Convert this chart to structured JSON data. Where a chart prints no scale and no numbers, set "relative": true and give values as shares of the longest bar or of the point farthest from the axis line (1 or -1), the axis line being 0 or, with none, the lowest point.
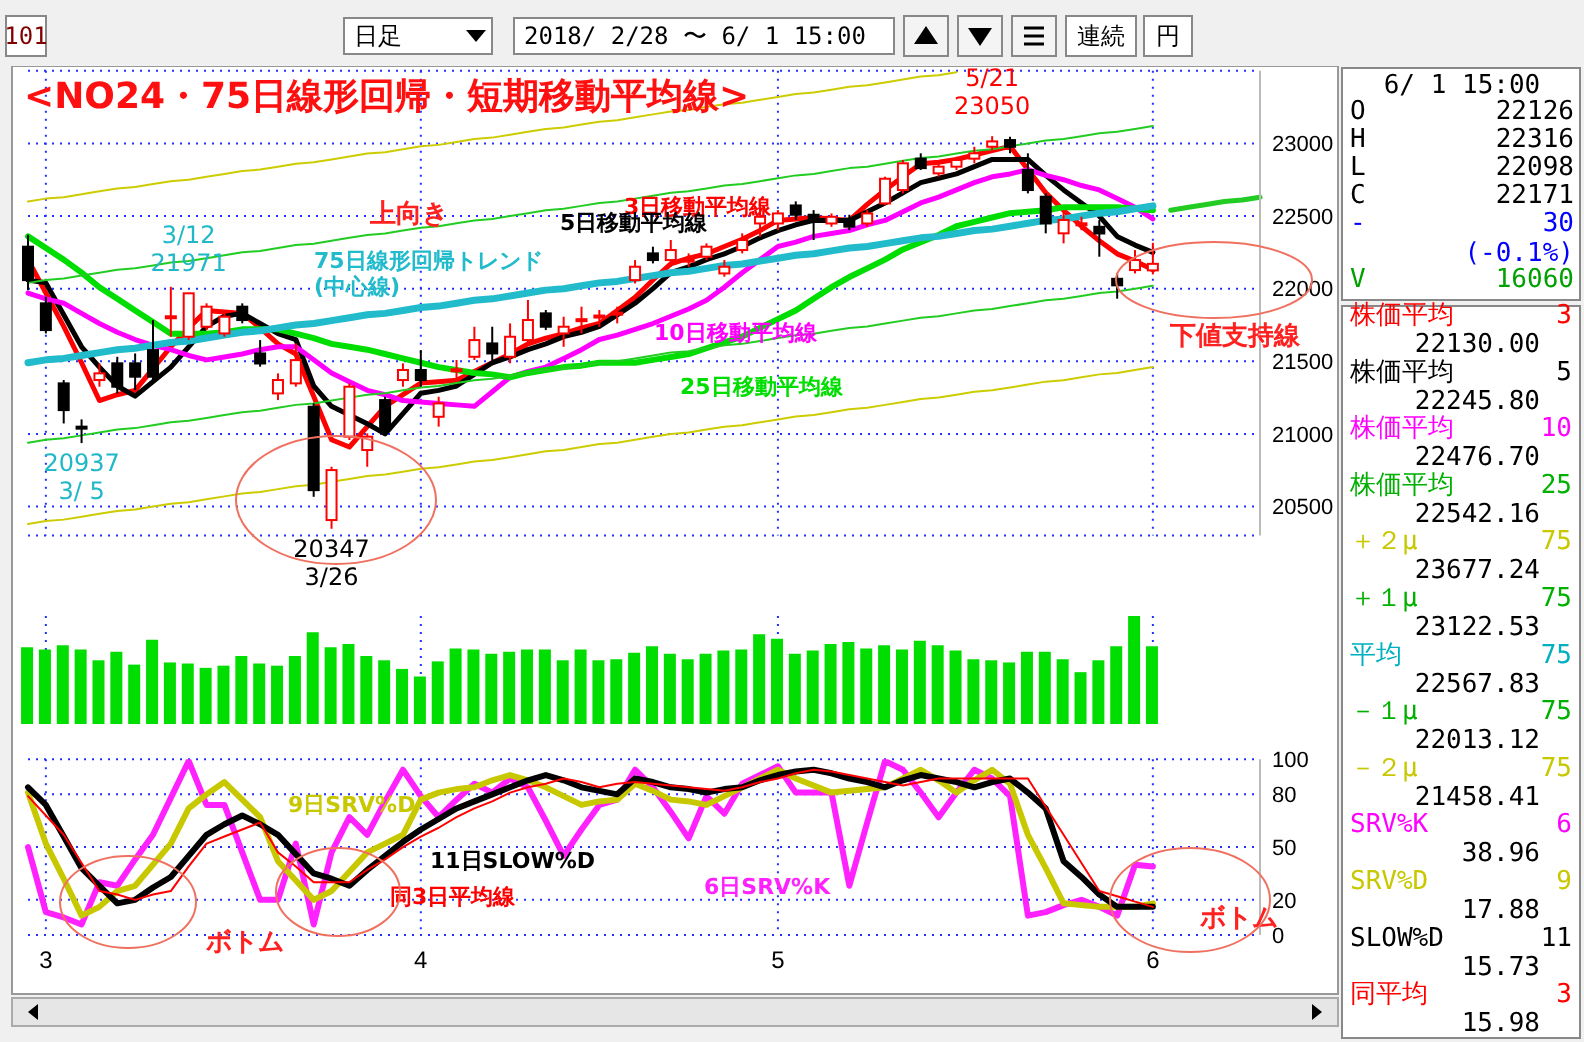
{
  "chart_data": [
    {
      "type": "candlestick",
      "title": "<NO24・75日線形回帰・短期移動平均線>",
      "categories": [
        null,
        "3",
        null,
        null,
        null,
        null,
        null,
        null,
        null,
        null,
        null,
        null,
        null,
        null,
        null,
        null,
        null,
        null,
        null,
        null,
        null,
        null,
        "4",
        null,
        null,
        null,
        null,
        null,
        null,
        null,
        null,
        null,
        null,
        null,
        null,
        null,
        null,
        null,
        null,
        null,
        null,
        null,
        "5",
        null,
        null,
        null,
        null,
        null,
        null,
        null,
        null,
        null,
        null,
        null,
        null,
        null,
        null,
        null,
        null,
        null,
        null,
        null,
        null,
        "6",
        null,
        null,
        null,
        null,
        null,
        null
      ],
      "ohlc": [
        [
          22289,
          22371,
          21990,
          22059
        ],
        [
          21899,
          21944,
          21692,
          21715
        ],
        [
          21348,
          21371,
          21072,
          21164
        ],
        [
          21050,
          21100,
          20937,
          21045
        ],
        [
          21371,
          21486,
          21325,
          21417
        ],
        [
          21486,
          21531,
          21279,
          21325
        ],
        [
          21486,
          21554,
          21302,
          21394
        ],
        [
          21577,
          21784,
          21371,
          21394
        ],
        [
          21800,
          22013,
          21669,
          21810
        ],
        [
          21669,
          21971,
          21646,
          21968
        ],
        [
          21738,
          21899,
          21715,
          21876
        ],
        [
          21692,
          21853,
          21669,
          21807
        ],
        [
          21876,
          21899,
          21761,
          21784
        ],
        [
          21554,
          21646,
          21463,
          21485
        ],
        [
          21279,
          21417,
          21233,
          21371
        ],
        [
          21348,
          21623,
          21325,
          21508
        ],
        [
          21187,
          21210,
          20567,
          20613
        ],
        [
          20407,
          20774,
          20347,
          20751
        ],
        [
          20981,
          21348,
          20958,
          21325
        ],
        [
          20889,
          21004,
          20774,
          20981
        ],
        [
          21233,
          21256,
          21004,
          21026
        ],
        [
          21371,
          21486,
          21325,
          21440
        ],
        [
          21440,
          21577,
          21325,
          21371
        ],
        [
          21118,
          21256,
          21050,
          21210
        ],
        [
          21440,
          21509,
          21371,
          21445
        ],
        [
          21531,
          21738,
          21509,
          21646
        ],
        [
          21623,
          21738,
          21509,
          21554
        ],
        [
          21531,
          21761,
          21486,
          21669
        ],
        [
          21646,
          21922,
          21623,
          21784
        ],
        [
          21830,
          21853,
          21715,
          21738
        ],
        [
          21692,
          21807,
          21600,
          21738
        ],
        [
          21784,
          21876,
          21692,
          21790
        ],
        [
          21810,
          21853,
          21738,
          21815
        ],
        [
          21825,
          21876,
          21761,
          21835
        ],
        [
          22059,
          22197,
          22036,
          22151
        ],
        [
          22243,
          22289,
          22174,
          22197
        ],
        [
          22197,
          22335,
          22151,
          22266
        ],
        [
          22195,
          22243,
          22151,
          22200
        ],
        [
          22220,
          22312,
          22197,
          22289
        ],
        [
          22105,
          22197,
          22082,
          22151
        ],
        [
          22266,
          22381,
          22243,
          22335
        ],
        [
          22449,
          22587,
          22358,
          22495
        ],
        [
          22449,
          22541,
          22403,
          22518
        ],
        [
          22573,
          22601,
          22472,
          22509
        ],
        [
          22509,
          22541,
          22335,
          22472
        ],
        [
          22449,
          22518,
          22426,
          22495
        ],
        [
          22482,
          22509,
          22403,
          22427
        ],
        [
          22449,
          22541,
          22426,
          22518
        ],
        [
          22587,
          22771,
          22573,
          22757
        ],
        [
          22679,
          22886,
          22656,
          22863
        ],
        [
          22895,
          22932,
          22817,
          22830
        ],
        [
          22794,
          22886,
          22771,
          22840
        ],
        [
          22840,
          22908,
          22817,
          22886
        ],
        [
          22895,
          22977,
          22863,
          22932
        ],
        [
          22977,
          23050,
          22954,
          23014
        ],
        [
          23023,
          23046,
          22932,
          22977
        ],
        [
          22817,
          22932,
          22656,
          22679
        ],
        [
          22633,
          22656,
          22381,
          22449
        ],
        [
          22381,
          22541,
          22312,
          22473
        ],
        [
          22445,
          22495,
          22403,
          22450
        ],
        [
          22426,
          22472,
          22220,
          22380
        ],
        [
          22068,
          22105,
          21931,
          22023
        ],
        [
          22128,
          22266,
          22105,
          22197
        ],
        [
          22126,
          22316,
          22098,
          22171
        ],
        null,
        null,
        null,
        null,
        null,
        null
      ],
      "series": [
        {
          "type": "line",
          "name": "3日移動平均線",
          "color": "#ff0000",
          "values": [
            22200,
            21970,
            21740,
            21490,
            21230,
            21270,
            21300,
            21450,
            21600,
            21730,
            21850,
            21840,
            21830,
            21730,
            21620,
            21550,
            21260,
            20960,
            20910,
            21050,
            21190,
            21270,
            21350,
            21360,
            21370,
            21430,
            21490,
            21550,
            21620,
            21660,
            21690,
            21730,
            21760,
            21850,
            21940,
            22060,
            22170,
            22210,
            22240,
            22290,
            22340,
            22400,
            22470,
            22480,
            22490,
            22480,
            22470,
            22580,
            22680,
            22770,
            22860,
            22870,
            22890,
            22920,
            22950,
            22980,
            22820,
            22660,
            22540,
            22430,
            22330,
            22240,
            22190,
            22130,
            null,
            null,
            null,
            null,
            null,
            null
          ]
        },
        {
          "type": "line",
          "name": "5日移動平均線",
          "color": "#000000",
          "values": [
            22060,
            22040,
            21820,
            21600,
            21460,
            21330,
            21260,
            21360,
            21460,
            21600,
            21740,
            21810,
            21830,
            21760,
            21690,
            21650,
            21330,
            21190,
            21130,
            21070,
            21000,
            21140,
            21280,
            21300,
            21330,
            21410,
            21490,
            21530,
            21580,
            21620,
            21670,
            21700,
            21740,
            21820,
            21900,
            22000,
            22110,
            22150,
            22200,
            22240,
            22290,
            22350,
            22400,
            22440,
            22470,
            22470,
            22470,
            22530,
            22590,
            22660,
            22730,
            22760,
            22790,
            22840,
            22890,
            22890,
            22890,
            22780,
            22680,
            22590,
            22500,
            22360,
            22300,
            22250,
            null,
            null,
            null,
            null,
            null,
            null
          ]
        },
        {
          "type": "line",
          "name": "10日移動平均線",
          "color": "#ff00ff",
          "values": [
            21970,
            21930,
            21900,
            21830,
            21760,
            21700,
            21650,
            21610,
            21580,
            21540,
            21510,
            21530,
            21550,
            21580,
            21600,
            21600,
            21510,
            21420,
            21360,
            21300,
            21270,
            21230,
            21220,
            21210,
            21200,
            21190,
            21290,
            21390,
            21430,
            21460,
            21520,
            21580,
            21650,
            21680,
            21720,
            21760,
            21810,
            21860,
            21920,
            22010,
            22110,
            22200,
            22290,
            22320,
            22360,
            22380,
            22400,
            22440,
            22470,
            22530,
            22590,
            22630,
            22680,
            22730,
            22770,
            22790,
            22820,
            22780,
            22750,
            22710,
            22680,
            22620,
            22560,
            22480,
            null,
            null,
            null,
            null,
            null,
            null
          ]
        },
        {
          "type": "line",
          "name": "25日移動平均線",
          "color": "#00dd00",
          "values": [
            22360,
            22280,
            22200,
            22110,
            22010,
            21930,
            21850,
            21770,
            21690,
            21690,
            21690,
            21700,
            21720,
            21720,
            21720,
            21690,
            21660,
            21620,
            21600,
            21580,
            21550,
            21520,
            21490,
            21460,
            21440,
            21420,
            21410,
            21390,
            21420,
            21440,
            21460,
            21470,
            21490,
            21490,
            21490,
            21510,
            21530,
            21550,
            21590,
            21630,
            21670,
            21730,
            21790,
            21850,
            21930,
            22010,
            22080,
            22140,
            22200,
            22270,
            22320,
            22370,
            22430,
            22460,
            22490,
            22520,
            22530,
            22540,
            22560,
            22560,
            22560,
            22560,
            22550,
            22540,
            null,
            null,
            null,
            null,
            null,
            null
          ]
        },
        {
          "type": "line",
          "name": "75日線形回帰トレンド\n(中心線)",
          "color": "#22bbcc",
          "values": [
            21490,
            21510,
            21520,
            21540,
            21560,
            21580,
            21590,
            21610,
            21630,
            21640,
            21660,
            21680,
            21700,
            21710,
            21730,
            21750,
            21760,
            21780,
            21800,
            21820,
            21830,
            21850,
            21870,
            21880,
            21900,
            21920,
            21930,
            21950,
            21970,
            21990,
            22000,
            22020,
            22040,
            22050,
            22070,
            22090,
            22110,
            22120,
            22140,
            22160,
            22170,
            22190,
            22210,
            22230,
            22240,
            22260,
            22280,
            22290,
            22310,
            22330,
            22350,
            22360,
            22380,
            22400,
            22410,
            22430,
            22450,
            22470,
            22480,
            22500,
            22520,
            22530,
            22550,
            22570,
            null,
            null,
            null,
            null,
            null,
            null
          ]
        },
        {
          "type": "line",
          "color": "#22cc22",
          "values": [
            22040,
            22060,
            22070,
            22090,
            22110,
            22130,
            22140,
            22160,
            22180,
            22190,
            22210,
            22230,
            22250,
            22260,
            22280,
            22300,
            22310,
            22330,
            22350,
            22370,
            22380,
            22400,
            22420,
            22430,
            22450,
            22470,
            22480,
            22500,
            22520,
            22540,
            22550,
            22570,
            22590,
            22600,
            22620,
            22640,
            22660,
            22670,
            22690,
            22710,
            22720,
            22740,
            22760,
            22780,
            22790,
            22810,
            22830,
            22840,
            22860,
            22880,
            22900,
            22910,
            22930,
            22950,
            22960,
            22980,
            23000,
            23020,
            23030,
            23050,
            23070,
            23080,
            23100,
            23120,
            null,
            null,
            null,
            null,
            null,
            null
          ]
        },
        {
          "type": "line",
          "color": "#22cc22",
          "values": [
            20940,
            20960,
            20970,
            20990,
            21010,
            21030,
            21040,
            21060,
            21080,
            21090,
            21110,
            21130,
            21150,
            21160,
            21180,
            21200,
            21210,
            21230,
            21250,
            21270,
            21280,
            21300,
            21320,
            21330,
            21350,
            21370,
            21380,
            21400,
            21420,
            21440,
            21450,
            21470,
            21490,
            21500,
            21520,
            21540,
            21560,
            21570,
            21590,
            21610,
            21620,
            21640,
            21660,
            21680,
            21690,
            21710,
            21730,
            21740,
            21760,
            21780,
            21800,
            21810,
            21830,
            21850,
            21860,
            21880,
            21900,
            21920,
            21930,
            21950,
            21970,
            21980,
            22000,
            22020,
            null,
            null,
            null,
            null,
            null,
            null
          ]
        },
        {
          "type": "line",
          "color": "#cccc00",
          "values": [
            22600,
            22620,
            22630,
            22650,
            22670,
            22690,
            22700,
            22720,
            22740,
            22750,
            22770,
            22790,
            22810,
            22820,
            22840,
            22860,
            22870,
            22890,
            22910,
            22930,
            22940,
            22960,
            22980,
            22990,
            23010,
            23030,
            23040,
            23060,
            23080,
            23100,
            23110,
            23130,
            23150,
            23160,
            23180,
            23200,
            23220,
            23230,
            23250,
            23270,
            23280,
            23300,
            23320,
            23340,
            23350,
            23370,
            23390,
            23400,
            23420,
            23440,
            23460,
            23470,
            23490,
            null,
            null,
            null,
            null,
            null,
            null,
            null,
            null,
            null,
            null,
            null,
            null,
            null,
            null,
            null,
            null,
            null
          ]
        },
        {
          "type": "line",
          "color": "#cccc00",
          "values": [
            20380,
            20400,
            20410,
            20430,
            20450,
            20470,
            20480,
            20500,
            20520,
            20530,
            20550,
            20570,
            20590,
            20600,
            20620,
            20640,
            20650,
            20670,
            20690,
            20710,
            20720,
            20740,
            20760,
            20770,
            20790,
            20810,
            20820,
            20840,
            20860,
            20880,
            20890,
            20910,
            20930,
            20940,
            20960,
            20980,
            21000,
            21010,
            21030,
            21050,
            21060,
            21080,
            21100,
            21120,
            21130,
            21150,
            21170,
            21180,
            21200,
            21220,
            21240,
            21250,
            21270,
            21290,
            21300,
            21320,
            21340,
            21360,
            21370,
            21390,
            21410,
            21420,
            21440,
            21460,
            null,
            null,
            null,
            null,
            null,
            null
          ]
        },
        {
          "type": "line",
          "color": "#22cc22",
          "values": [
            null,
            null,
            null,
            null,
            null,
            null,
            null,
            null,
            null,
            null,
            null,
            null,
            null,
            null,
            null,
            null,
            null,
            null,
            null,
            null,
            null,
            null,
            null,
            null,
            null,
            null,
            null,
            null,
            null,
            null,
            null,
            null,
            null,
            null,
            null,
            null,
            null,
            null,
            null,
            null,
            null,
            null,
            null,
            null,
            null,
            null,
            null,
            null,
            null,
            null,
            null,
            null,
            null,
            null,
            null,
            null,
            null,
            null,
            null,
            null,
            null,
            null,
            null,
            null,
            22540,
            22560,
            22580,
            22600,
            22610,
            22630
          ]
        }
      ],
      "ylim": [
        20300,
        23500
      ],
      "yticks": [
        20500,
        21000,
        21500,
        22000,
        22500,
        23000
      ],
      "grid": true,
      "tick_labels": "y",
      "annotations": [
        "上向き",
        {
          "text": "3/12\n21971",
          "y": 21971
        },
        {
          "text": "20937\n3/ 5",
          "y": 20937
        },
        {
          "text": "20347\n3/26",
          "y": 20347
        },
        {
          "text": "5/21\n23050",
          "y": 23050
        },
        "下値支持線",
        "6/ 1 15:00",
        "O",
        "22126",
        "H",
        "22316",
        "L",
        "22098",
        "C",
        "22171",
        "-",
        "30",
        "(-0.1%)",
        "V",
        "16060",
        "株価平均",
        "3",
        "22130.00",
        "株価平均",
        "5",
        "22245.80",
        "株価平均",
        "10",
        "22476.70",
        "株価平均",
        "25",
        "22542.16",
        "＋２μ",
        "75",
        "23677.24",
        "＋１μ",
        "75",
        "23122.53",
        "平均",
        "75",
        "22567.83",
        "－１μ",
        "75",
        "22013.12",
        "－２μ",
        "75",
        "21458.41",
        "SRV%K",
        "6",
        "38.96",
        "SRV%D",
        "9",
        "17.88",
        "SLOW%D",
        "11",
        "15.73",
        "同平均",
        "3",
        "15.98"
      ]
    },
    {
      "type": "bar",
      "relative": true,
      "color": "#00dd00",
      "categories": [
        null,
        "3",
        null,
        null,
        null,
        null,
        null,
        null,
        null,
        null,
        null,
        null,
        null,
        null,
        null,
        null,
        null,
        null,
        null,
        null,
        null,
        null,
        "4",
        null,
        null,
        null,
        null,
        null,
        null,
        null,
        null,
        null,
        null,
        null,
        null,
        null,
        null,
        null,
        null,
        null,
        null,
        null,
        "5",
        null,
        null,
        null,
        null,
        null,
        null,
        null,
        null,
        null,
        null,
        null,
        null,
        null,
        null,
        null,
        null,
        null,
        null,
        null,
        null,
        "6",
        null,
        null,
        null,
        null,
        null,
        null
      ],
      "values": [
        0.71,
        0.69,
        0.73,
        0.69,
        0.59,
        0.67,
        0.55,
        0.78,
        0.57,
        0.56,
        0.52,
        0.54,
        0.63,
        0.56,
        0.54,
        0.63,
        0.85,
        0.71,
        0.74,
        0.63,
        0.59,
        0.51,
        0.44,
        0.58,
        0.7,
        0.69,
        0.65,
        0.67,
        0.69,
        0.69,
        0.59,
        0.69,
        0.59,
        0.6,
        0.66,
        0.72,
        0.65,
        0.6,
        0.65,
        0.68,
        0.69,
        0.83,
        0.79,
        0.65,
        0.68,
        0.74,
        0.76,
        0.7,
        0.73,
        0.69,
        0.77,
        0.73,
        0.68,
        0.6,
        0.59,
        0.57,
        0.67,
        0.67,
        0.6,
        0.48,
        0.59,
        0.72,
        1,
        0.72,
        null,
        null,
        null,
        null,
        null,
        null
      ],
      "grid": "x",
      "tick_labels": false
    },
    {
      "type": "line",
      "categories": [
        null,
        "3",
        null,
        null,
        null,
        null,
        null,
        null,
        null,
        null,
        null,
        null,
        null,
        null,
        null,
        null,
        null,
        null,
        null,
        null,
        null,
        null,
        "4",
        null,
        null,
        null,
        null,
        null,
        null,
        null,
        null,
        null,
        null,
        null,
        null,
        null,
        null,
        null,
        null,
        null,
        null,
        null,
        "5",
        null,
        null,
        null,
        null,
        null,
        null,
        null,
        null,
        null,
        null,
        null,
        null,
        null,
        null,
        null,
        null,
        null,
        null,
        null,
        null,
        "6",
        null,
        null,
        null,
        null,
        null,
        null
      ],
      "series": [
        {
          "name": "6日SRV%K",
          "color": "#ff22ff",
          "values": [
            50,
            13,
            10,
            6,
            30,
            28,
            43,
            57,
            78,
            99,
            74,
            74,
            47,
            20,
            20,
            52,
            6,
            47,
            67,
            57,
            76,
            94,
            79,
            67,
            77,
            86,
            81,
            89,
            84,
            65,
            45,
            60,
            74,
            77,
            94,
            84,
            70,
            55,
            79,
            69,
            86,
            91,
            96,
            81,
            81,
            81,
            28,
            64,
            99,
            94,
            81,
            67,
            81,
            94,
            89,
            79,
            11,
            13,
            17,
            20,
            16,
            11,
            40,
            39,
            null,
            null,
            null,
            null,
            null,
            null
          ]
        },
        {
          "name": "9日SRV%D",
          "color": "#c8c800",
          "values": [
            81,
            52,
            32,
            11,
            16,
            25,
            28,
            40,
            52,
            72,
            80,
            87,
            77,
            67,
            42,
            31,
            20,
            25,
            36,
            47,
            52,
            57,
            77,
            81,
            83,
            84,
            88,
            91,
            88,
            84,
            79,
            74,
            76,
            77,
            86,
            82,
            77,
            76,
            74,
            79,
            84,
            89,
            94,
            89,
            85,
            81,
            82,
            83,
            84,
            89,
            94,
            88,
            81,
            88,
            94,
            86,
            57,
            38,
            18,
            17,
            16,
            16,
            16,
            18,
            null,
            null,
            null,
            null,
            null,
            null
          ]
        },
        {
          "name": "11日SLOW%D",
          "color": "#000000",
          "values": [
            84,
            74,
            56,
            38,
            28,
            18,
            20,
            27,
            33,
            45,
            57,
            63,
            68,
            63,
            57,
            46,
            35,
            32,
            28,
            37,
            45,
            53,
            60,
            66,
            72,
            76,
            80,
            84,
            88,
            91,
            88,
            84,
            82,
            80,
            89,
            87,
            84,
            83,
            81,
            83,
            84,
            88,
            91,
            93,
            94,
            92,
            89,
            87,
            84,
            88,
            91,
            89,
            87,
            84,
            87,
            89,
            81,
            72,
            42,
            33,
            23,
            16,
            16,
            16,
            null,
            null,
            null,
            null,
            null,
            null
          ]
        },
        {
          "name": "同3日平均線",
          "color": "#ff0000",
          "values": [
            79,
            68,
            57,
            41,
            25,
            23,
            20,
            23,
            25,
            39,
            52,
            56,
            60,
            64,
            47,
            39,
            30,
            30,
            30,
            37,
            43,
            50,
            56,
            61,
            67,
            72,
            76,
            81,
            84,
            86,
            89,
            87,
            84,
            86,
            87,
            86,
            85,
            84,
            83,
            82,
            84,
            87,
            89,
            92,
            94,
            93,
            91,
            89,
            87,
            85,
            87,
            89,
            89,
            89,
            89,
            89,
            89,
            73,
            57,
            41,
            25,
            22,
            19,
            16,
            null,
            null,
            null,
            null,
            null,
            null
          ]
        }
      ],
      "ylim": [
        0,
        100
      ],
      "yticks": [
        0,
        20,
        50,
        80,
        100
      ],
      "grid": true,
      "annotations": [
        "ボトム",
        "ボトム"
      ]
    },
    {
      "type": "other",
      "annotations": [
        "101",
        "日足",
        "2018/ 2/28 〜 6/ 1 15:00",
        "連続",
        "円"
      ]
    }
  ]
}
